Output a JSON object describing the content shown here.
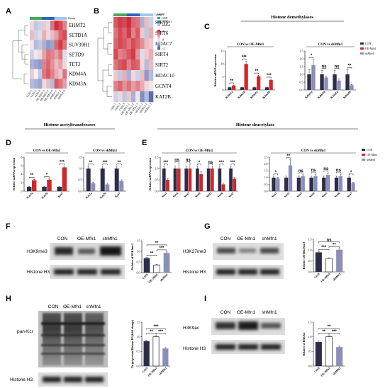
{
  "panel_letters": [
    "A",
    "B",
    "C",
    "D",
    "E",
    "F",
    "G",
    "H",
    "I"
  ],
  "colors": {
    "con": "#2d2d4a",
    "oe": "#d0262b",
    "sh": "#8a8fb8",
    "hm_low": "#3a4aa0",
    "hm_mid": "#f4f4f8",
    "hm_high": "#cf1f2b",
    "group_con": "#43a85a",
    "group_oe": "#2d63b8",
    "group_sh": "#9ecae8"
  },
  "heatmap_a": {
    "genes": [
      "EHMT2",
      "SETD1A",
      "SUV39H1",
      "SETD9",
      "TET3",
      "KDM4A",
      "KDM3A"
    ],
    "samples": [
      "CON-1",
      "CON-2",
      "CON-3",
      "OE-Mfn1-1",
      "OE-Mfn1-2",
      "OE-Mfn1-3",
      "shMfn1-1",
      "shMfn1-2",
      "shMfn1-3"
    ],
    "group_label": "Group",
    "values": [
      [
        0.2,
        -0.4,
        -0.3,
        0.3,
        -0.2,
        0.9,
        1.4,
        1.2,
        0.8
      ],
      [
        0.4,
        -0.3,
        -0.2,
        0.5,
        0.2,
        0.4,
        0.6,
        1.0,
        1.2
      ],
      [
        0.1,
        -0.5,
        -0.4,
        -0.6,
        -0.8,
        -0.7,
        1.0,
        1.3,
        0.9
      ],
      [
        -0.3,
        -0.1,
        0.2,
        0.6,
        0.9,
        0.8,
        0.6,
        0.9,
        -0.2
      ],
      [
        -0.6,
        -0.7,
        -0.8,
        0.8,
        1.0,
        0.7,
        0.4,
        0.6,
        0.2
      ],
      [
        0.3,
        0.0,
        -0.4,
        0.9,
        1.1,
        0.8,
        0.5,
        0.3,
        0.9
      ],
      [
        -0.5,
        -0.6,
        -0.7,
        0.2,
        0.4,
        -0.5,
        1.1,
        0.9,
        0.6
      ]
    ]
  },
  "heatmap_b": {
    "genes": [
      "SIRT5",
      "SIRT6",
      "HDAC7",
      "SIRT4",
      "SIRT2",
      "HDAC10",
      "GCNT4",
      "KAT2B"
    ],
    "samples": [
      "CON-1",
      "CON-2",
      "CON-3",
      "OE-Mfn1-1",
      "OE-Mfn1-2",
      "OE-Mfn1-3",
      "shMfn1-1",
      "shMfn1-2",
      "shMfn1-3"
    ],
    "group_label": "Group",
    "legend_groups": [
      "CON",
      "OEMfn1",
      "shMfn1"
    ],
    "legend_ticks": [
      "2",
      "0",
      "-2"
    ],
    "values": [
      [
        1.1,
        1.3,
        1.2,
        1.4,
        1.0,
        0.9,
        -0.6,
        0.4,
        -0.3
      ],
      [
        0.9,
        1.2,
        1.0,
        1.3,
        0.8,
        1.1,
        0.3,
        -0.4,
        0.5
      ],
      [
        1.0,
        1.2,
        1.1,
        0.9,
        1.2,
        1.0,
        0.7,
        0.4,
        0.3
      ],
      [
        1.2,
        0.8,
        0.9,
        1.1,
        1.3,
        0.7,
        -0.2,
        0.3,
        0.5
      ],
      [
        0.9,
        1.1,
        1.2,
        0.8,
        1.1,
        1.0,
        0.2,
        -0.5,
        0.4
      ],
      [
        0.3,
        -0.4,
        0.5,
        -0.6,
        0.2,
        -0.3,
        0.4,
        -0.8,
        -0.5
      ],
      [
        0.8,
        1.0,
        0.7,
        0.9,
        0.6,
        0.8,
        0.5,
        0.2,
        0.1
      ],
      [
        -0.3,
        0.2,
        -0.4,
        0.3,
        -0.6,
        0.1,
        -0.9,
        -0.5,
        -1.2
      ]
    ]
  },
  "chart_data": [
    {
      "id": "C1",
      "type": "bar",
      "title": "Histone demethylases",
      "subtitle": "CON vs OE-Mfn1",
      "ylabel": "Relative mRNA expression",
      "ylim": [
        0,
        15
      ],
      "yticks": [
        0,
        5,
        10,
        15
      ],
      "categories": [
        "Kdm1a",
        "Kdm1b",
        "Kdm4a",
        "Kdm4b"
      ],
      "series": [
        {
          "name": "CON",
          "values": [
            1,
            1,
            1,
            1
          ],
          "err": [
            0.1,
            0.1,
            0.1,
            0.1
          ]
        },
        {
          "name": "OE-Mfn1",
          "values": [
            1.7,
            10,
            5.3,
            3.8
          ],
          "err": [
            0.2,
            1.0,
            0.4,
            0.3
          ]
        }
      ],
      "sig": [
        "**",
        "***",
        "**",
        "***"
      ]
    },
    {
      "id": "C2",
      "type": "bar",
      "subtitle": "CON vs shMfn1",
      "ylim": [
        0,
        2.5
      ],
      "yticks": [
        "0.0",
        "0.5",
        "1.0",
        "1.5",
        "2.0",
        "2.5"
      ],
      "categories": [
        "Kdm1a",
        "Kdm1b",
        "Kdm4a",
        "Kdm4b"
      ],
      "series": [
        {
          "name": "CON",
          "values": [
            1,
            1,
            1,
            1
          ],
          "err": [
            0.3,
            0.25,
            0.25,
            0.3
          ]
        },
        {
          "name": "shMfn1",
          "values": [
            1.6,
            0.8,
            0.6,
            0.3
          ],
          "err": [
            0.35,
            0.1,
            0.1,
            0.05
          ]
        }
      ],
      "sig": [
        "*",
        "ns",
        "ns",
        "**"
      ],
      "legend": [
        "CON",
        "OE-Mfn1",
        "shMfn1"
      ]
    },
    {
      "id": "D1",
      "type": "bar",
      "subtitle": "CON vs OE-Mfn1",
      "ylabel": "Relative mRNA expression",
      "ylim": [
        0,
        8
      ],
      "yticks": [
        0,
        2,
        4,
        6,
        8
      ],
      "categories": [
        "Kat2a",
        "Kat2b",
        "Kat7"
      ],
      "series": [
        {
          "name": "CON",
          "values": [
            1,
            1,
            1
          ],
          "err": [
            0.1,
            0.1,
            0.1
          ]
        },
        {
          "name": "OE-Mfn1",
          "values": [
            2.6,
            2.7,
            5.6
          ],
          "err": [
            0.2,
            0.2,
            0.3
          ]
        }
      ],
      "sig": [
        "**",
        "*",
        "***"
      ]
    },
    {
      "id": "D2",
      "type": "bar",
      "subtitle": "CON vs shMfn1",
      "ylim": [
        0,
        1.5
      ],
      "yticks": [
        "0.0",
        "0.5",
        "1.0",
        "1.5"
      ],
      "categories": [
        "Kat2a",
        "Kat2b",
        "Kat7"
      ],
      "series": [
        {
          "name": "CON",
          "values": [
            1,
            1,
            1
          ],
          "err": [
            0.1,
            0.1,
            0.1
          ]
        },
        {
          "name": "shMfn1",
          "values": [
            0.35,
            0.3,
            0.45
          ],
          "err": [
            0.05,
            0.05,
            0.05
          ]
        }
      ],
      "sig": [
        "**",
        "***",
        "**"
      ]
    },
    {
      "id": "E1",
      "type": "bar",
      "subtitle": "CON vs OE-Mfn1",
      "ylabel": "Relative mRNA expression",
      "ylim": [
        0,
        1.5
      ],
      "yticks": [
        "0.0",
        "0.5",
        "1.0",
        "1.5"
      ],
      "categories": [
        "Sirt1",
        "Sirt2",
        "Sirt3",
        "Sirt4",
        "Sirt5",
        "Sirt6",
        "Sirt7"
      ],
      "series": [
        {
          "name": "CON",
          "values": [
            1,
            1,
            1,
            1,
            1,
            1,
            1
          ],
          "err": [
            0.1,
            0.1,
            0.1,
            0.1,
            0.1,
            0.1,
            0.1
          ]
        },
        {
          "name": "OE-Mfn1",
          "values": [
            0.5,
            1.0,
            1.0,
            0.75,
            1.0,
            0.3,
            0.55
          ],
          "err": [
            0.05,
            0.2,
            0.2,
            0.1,
            0.1,
            0.05,
            0.05
          ]
        }
      ],
      "sig": [
        "***",
        "ns",
        "ns",
        "*",
        "ns",
        "***",
        "***"
      ]
    },
    {
      "id": "E2",
      "type": "bar",
      "subtitle": "CON vs shMfn1",
      "ylim": [
        0,
        2.5
      ],
      "yticks": [
        "0.0",
        "0.5",
        "1.0",
        "1.5",
        "2.0",
        "2.5"
      ],
      "categories": [
        "Sirt1",
        "Sirt2",
        "Sirt3",
        "Sirt4",
        "Sirt5",
        "Sirt6",
        "Sirt7"
      ],
      "series": [
        {
          "name": "CON",
          "values": [
            1,
            1,
            1,
            1,
            1,
            1,
            1
          ],
          "err": [
            0.1,
            0.1,
            0.1,
            0.1,
            0.1,
            0.1,
            0.1
          ]
        },
        {
          "name": "shMfn1",
          "values": [
            0.95,
            1.9,
            1.1,
            1.1,
            1.2,
            1.1,
            0.6
          ],
          "err": [
            0.05,
            0.4,
            0.1,
            0.15,
            0.15,
            0.15,
            0.05
          ]
        }
      ],
      "sig": [
        "*",
        "**",
        "ns",
        "ns",
        "ns",
        "ns",
        "*"
      ],
      "legend": [
        "CON",
        "OE-Mfn1",
        "shMfn1"
      ]
    },
    {
      "id": "F",
      "type": "bar",
      "ylabel": "Relative of H3K9me3",
      "ylim": [
        0,
        1.5
      ],
      "yticks": [
        "0.0",
        "0.5",
        "1.0",
        "1.5"
      ],
      "categories": [
        "CON",
        "OE-Mfn1",
        "shMfn1"
      ],
      "values": [
        0.68,
        0.36,
        0.93
      ],
      "err": [
        0.04,
        0.03,
        0.04
      ],
      "sig": [
        {
          "a": 0,
          "b": 1,
          "t": "**"
        },
        {
          "a": 1,
          "b": 2,
          "t": "***"
        },
        {
          "a": 0,
          "b": 2,
          "t": "**"
        }
      ]
    },
    {
      "id": "G",
      "type": "bar",
      "ylabel": "Relative of H3K27me3",
      "ylim": [
        0,
        1.5
      ],
      "yticks": [
        "0.0",
        "0.5",
        "1.0",
        "1.5"
      ],
      "categories": [
        "CON",
        "OE-Mfn1",
        "shMfn1"
      ],
      "values": [
        0.9,
        0.62,
        1.02
      ],
      "err": [
        0.04,
        0.03,
        0.04
      ],
      "sig": [
        {
          "a": 0,
          "b": 1,
          "t": "***"
        },
        {
          "a": 1,
          "b": 2,
          "t": "**"
        },
        {
          "a": 0,
          "b": 2,
          "t": "ns"
        }
      ]
    },
    {
      "id": "H",
      "type": "bar",
      "ylabel": "Target protein/Histone H3 (fold change)",
      "ylim": [
        0,
        1.5
      ],
      "yticks": [
        "0.0",
        "0.5",
        "1.0",
        "1.5"
      ],
      "categories": [
        "CON",
        "OE-Mfn1",
        "shMfn1"
      ],
      "values": [
        0.85,
        1.0,
        0.6
      ],
      "err": [
        0.03,
        0.04,
        0.03
      ],
      "sig": [
        {
          "a": 0,
          "b": 1,
          "t": "**"
        },
        {
          "a": 1,
          "b": 2,
          "t": "***"
        },
        {
          "a": 0,
          "b": 2,
          "t": "***"
        }
      ]
    },
    {
      "id": "I",
      "type": "bar",
      "ylabel": "Relative of H3K9ac",
      "ylim": [
        0,
        1.5
      ],
      "yticks": [
        "0.0",
        "0.5",
        "1.0",
        "1.5"
      ],
      "categories": [
        "CON",
        "OE-Mfn1",
        "shMfn1"
      ],
      "values": [
        0.82,
        1.0,
        0.65
      ],
      "err": [
        0.03,
        0.04,
        0.03
      ],
      "sig": [
        {
          "a": 0,
          "b": 1,
          "t": "**"
        },
        {
          "a": 1,
          "b": 2,
          "t": "***"
        },
        {
          "a": 0,
          "b": 2,
          "t": "**"
        }
      ]
    }
  ],
  "titles": {
    "d": "Histone acetyltransferases",
    "e": "Histone deacetylase"
  },
  "blots": {
    "F": {
      "lanes": [
        "CON",
        "OE-Mfn1",
        "shMfn1"
      ],
      "rows": [
        "H3K9me3",
        "Histone H3"
      ]
    },
    "G": {
      "lanes": [
        "CON",
        "OE-Mfn1",
        "shMfn1"
      ],
      "rows": [
        "H3K27me3",
        "Histone H3"
      ]
    },
    "H": {
      "lanes": [
        "CON",
        "OE-Mfn1",
        "shMfn1"
      ],
      "rows": [
        "pan-Kcr",
        "Histone H3"
      ]
    },
    "I": {
      "lanes": [
        "CON",
        "OE-Mfn1",
        "shMfn1"
      ],
      "rows": [
        "H3K9ac",
        "Histone H3"
      ]
    }
  }
}
